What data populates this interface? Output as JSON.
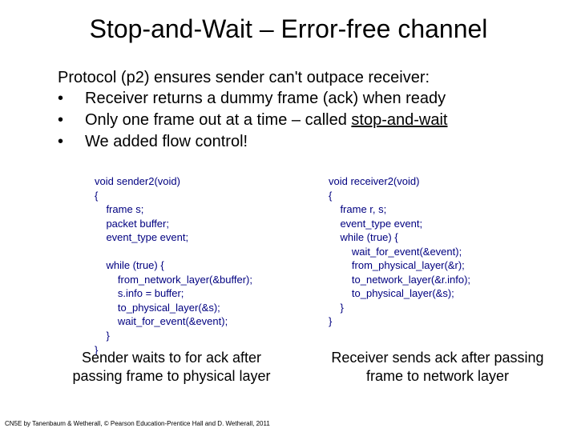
{
  "title": "Stop-and-Wait – Error-free channel",
  "intro": "Protocol (p2) ensures sender can't outpace receiver:",
  "bullets": [
    "Receiver returns a dummy frame (ack) when ready",
    "Only one frame out at a time – called ",
    "We added flow control!"
  ],
  "underlined_term": "stop-and-wait",
  "code": {
    "sender": "void sender2(void)\n{\n    frame s;\n    packet buffer;\n    event_type event;\n\n    while (true) {\n        from_network_layer(&buffer);\n        s.info = buffer;\n        to_physical_layer(&s);\n        wait_for_event(&event);\n    }\n}",
    "receiver": "void receiver2(void)\n{\n    frame r, s;\n    event_type event;\n    while (true) {\n        wait_for_event(&event);\n        from_physical_layer(&r);\n        to_network_layer(&r.info);\n        to_physical_layer(&s);\n    }\n}"
  },
  "captions": {
    "left": "Sender waits to for ack after passing frame to physical layer",
    "right": "Receiver sends ack after passing frame to network layer"
  },
  "footer": "CN5E by Tanenbaum & Wetherall, © Pearson Education-Prentice Hall and D. Wetherall, 2011",
  "colors": {
    "code_color": "#000080",
    "text_color": "#000000",
    "background": "#ffffff"
  },
  "typography": {
    "title_fontsize": 32,
    "body_fontsize": 20,
    "code_fontsize": 13,
    "caption_fontsize": 18,
    "footer_fontsize": 8
  }
}
